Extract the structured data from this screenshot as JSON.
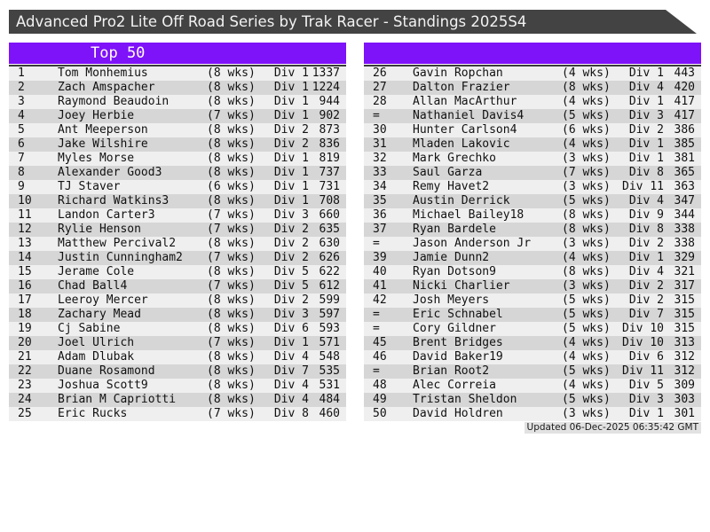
{
  "title": "Advanced Pro2 Lite Off Road Series by Trak Racer - Standings 2025S4",
  "left_header": "Top 50",
  "footer": "Updated 06-Dec-2025 06:35:42 GMT",
  "colors": {
    "accent": "#7e12f8",
    "titlebar": "#434343",
    "row_light": "#efefef",
    "row_dark": "#d6d6d6",
    "rule": "#3a3a3a",
    "footer_bg": "#e2e2e2"
  },
  "standings": [
    {
      "rank": "1",
      "name": "Tom Monhemius",
      "weeks": "(8 wks)",
      "div": "Div 1",
      "pts": 1337
    },
    {
      "rank": "2",
      "name": "Zach Amspacher",
      "weeks": "(8 wks)",
      "div": "Div 1",
      "pts": 1224
    },
    {
      "rank": "3",
      "name": "Raymond Beaudoin",
      "weeks": "(8 wks)",
      "div": "Div 1",
      "pts": 944
    },
    {
      "rank": "4",
      "name": "Joey Herbie",
      "weeks": "(7 wks)",
      "div": "Div 1",
      "pts": 902
    },
    {
      "rank": "5",
      "name": "Ant Meeperson",
      "weeks": "(8 wks)",
      "div": "Div 2",
      "pts": 873
    },
    {
      "rank": "6",
      "name": "Jake Wilshire",
      "weeks": "(8 wks)",
      "div": "Div 2",
      "pts": 836
    },
    {
      "rank": "7",
      "name": "Myles Morse",
      "weeks": "(8 wks)",
      "div": "Div 1",
      "pts": 819
    },
    {
      "rank": "8",
      "name": "Alexander Good3",
      "weeks": "(8 wks)",
      "div": "Div 1",
      "pts": 737
    },
    {
      "rank": "9",
      "name": "TJ Staver",
      "weeks": "(6 wks)",
      "div": "Div 1",
      "pts": 731
    },
    {
      "rank": "10",
      "name": "Richard Watkins3",
      "weeks": "(8 wks)",
      "div": "Div 1",
      "pts": 708
    },
    {
      "rank": "11",
      "name": "Landon Carter3",
      "weeks": "(7 wks)",
      "div": "Div 3",
      "pts": 660
    },
    {
      "rank": "12",
      "name": "Rylie Henson",
      "weeks": "(7 wks)",
      "div": "Div 2",
      "pts": 635
    },
    {
      "rank": "13",
      "name": "Matthew Percival2",
      "weeks": "(8 wks)",
      "div": "Div 2",
      "pts": 630
    },
    {
      "rank": "14",
      "name": "Justin Cunningham2",
      "weeks": "(7 wks)",
      "div": "Div 2",
      "pts": 626
    },
    {
      "rank": "15",
      "name": "Jerame Cole",
      "weeks": "(8 wks)",
      "div": "Div 5",
      "pts": 622
    },
    {
      "rank": "16",
      "name": "Chad Ball4",
      "weeks": "(7 wks)",
      "div": "Div 5",
      "pts": 612
    },
    {
      "rank": "17",
      "name": "Leeroy Mercer",
      "weeks": "(8 wks)",
      "div": "Div 2",
      "pts": 599
    },
    {
      "rank": "18",
      "name": "Zachary Mead",
      "weeks": "(8 wks)",
      "div": "Div 3",
      "pts": 597
    },
    {
      "rank": "19",
      "name": "Cj Sabine",
      "weeks": "(8 wks)",
      "div": "Div 6",
      "pts": 593
    },
    {
      "rank": "20",
      "name": "Joel Ulrich",
      "weeks": "(7 wks)",
      "div": "Div 1",
      "pts": 571
    },
    {
      "rank": "21",
      "name": "Adam Dlubak",
      "weeks": "(8 wks)",
      "div": "Div 4",
      "pts": 548
    },
    {
      "rank": "22",
      "name": "Duane Rosamond",
      "weeks": "(8 wks)",
      "div": "Div 7",
      "pts": 535
    },
    {
      "rank": "23",
      "name": "Joshua Scott9",
      "weeks": "(8 wks)",
      "div": "Div 4",
      "pts": 531
    },
    {
      "rank": "24",
      "name": "Brian M Capriotti",
      "weeks": "(8 wks)",
      "div": "Div 4",
      "pts": 484
    },
    {
      "rank": "25",
      "name": "Eric Rucks",
      "weeks": "(7 wks)",
      "div": "Div 8",
      "pts": 460
    },
    {
      "rank": "26",
      "name": "Gavin Ropchan",
      "weeks": "(4 wks)",
      "div": "Div 1",
      "pts": 443
    },
    {
      "rank": "27",
      "name": "Dalton Frazier",
      "weeks": "(8 wks)",
      "div": "Div 4",
      "pts": 420
    },
    {
      "rank": "28",
      "name": "Allan MacArthur",
      "weeks": "(4 wks)",
      "div": "Div 1",
      "pts": 417
    },
    {
      "rank": "=",
      "name": "Nathaniel Davis4",
      "weeks": "(5 wks)",
      "div": "Div 3",
      "pts": 417
    },
    {
      "rank": "30",
      "name": "Hunter Carlson4",
      "weeks": "(6 wks)",
      "div": "Div 2",
      "pts": 386
    },
    {
      "rank": "31",
      "name": "Mladen Lakovic",
      "weeks": "(4 wks)",
      "div": "Div 1",
      "pts": 385
    },
    {
      "rank": "32",
      "name": "Mark Grechko",
      "weeks": "(3 wks)",
      "div": "Div 1",
      "pts": 381
    },
    {
      "rank": "33",
      "name": "Saul Garza",
      "weeks": "(7 wks)",
      "div": "Div 8",
      "pts": 365
    },
    {
      "rank": "34",
      "name": "Remy Havet2",
      "weeks": "(3 wks)",
      "div": "Div 11",
      "pts": 363
    },
    {
      "rank": "35",
      "name": "Austin Derrick",
      "weeks": "(5 wks)",
      "div": "Div 4",
      "pts": 347
    },
    {
      "rank": "36",
      "name": "Michael Bailey18",
      "weeks": "(8 wks)",
      "div": "Div 9",
      "pts": 344
    },
    {
      "rank": "37",
      "name": "Ryan Bardele",
      "weeks": "(8 wks)",
      "div": "Div 8",
      "pts": 338
    },
    {
      "rank": "=",
      "name": "Jason Anderson Jr",
      "weeks": "(3 wks)",
      "div": "Div 2",
      "pts": 338
    },
    {
      "rank": "39",
      "name": "Jamie Dunn2",
      "weeks": "(4 wks)",
      "div": "Div 1",
      "pts": 329
    },
    {
      "rank": "40",
      "name": "Ryan Dotson9",
      "weeks": "(8 wks)",
      "div": "Div 4",
      "pts": 321
    },
    {
      "rank": "41",
      "name": "Nicki Charlier",
      "weeks": "(3 wks)",
      "div": "Div 2",
      "pts": 317
    },
    {
      "rank": "42",
      "name": "Josh Meyers",
      "weeks": "(5 wks)",
      "div": "Div 2",
      "pts": 315
    },
    {
      "rank": "=",
      "name": "Eric Schnabel",
      "weeks": "(5 wks)",
      "div": "Div 7",
      "pts": 315
    },
    {
      "rank": "=",
      "name": "Cory Gildner",
      "weeks": "(5 wks)",
      "div": "Div 10",
      "pts": 315
    },
    {
      "rank": "45",
      "name": "Brent Bridges",
      "weeks": "(4 wks)",
      "div": "Div 10",
      "pts": 313
    },
    {
      "rank": "46",
      "name": "David Baker19",
      "weeks": "(4 wks)",
      "div": "Div 6",
      "pts": 312
    },
    {
      "rank": "=",
      "name": "Brian Root2",
      "weeks": "(5 wks)",
      "div": "Div 11",
      "pts": 312
    },
    {
      "rank": "48",
      "name": "Alec Correia",
      "weeks": "(4 wks)",
      "div": "Div 5",
      "pts": 309
    },
    {
      "rank": "49",
      "name": "Tristan Sheldon",
      "weeks": "(5 wks)",
      "div": "Div 3",
      "pts": 303
    },
    {
      "rank": "50",
      "name": "David Holdren",
      "weeks": "(3 wks)",
      "div": "Div 1",
      "pts": 301
    }
  ]
}
